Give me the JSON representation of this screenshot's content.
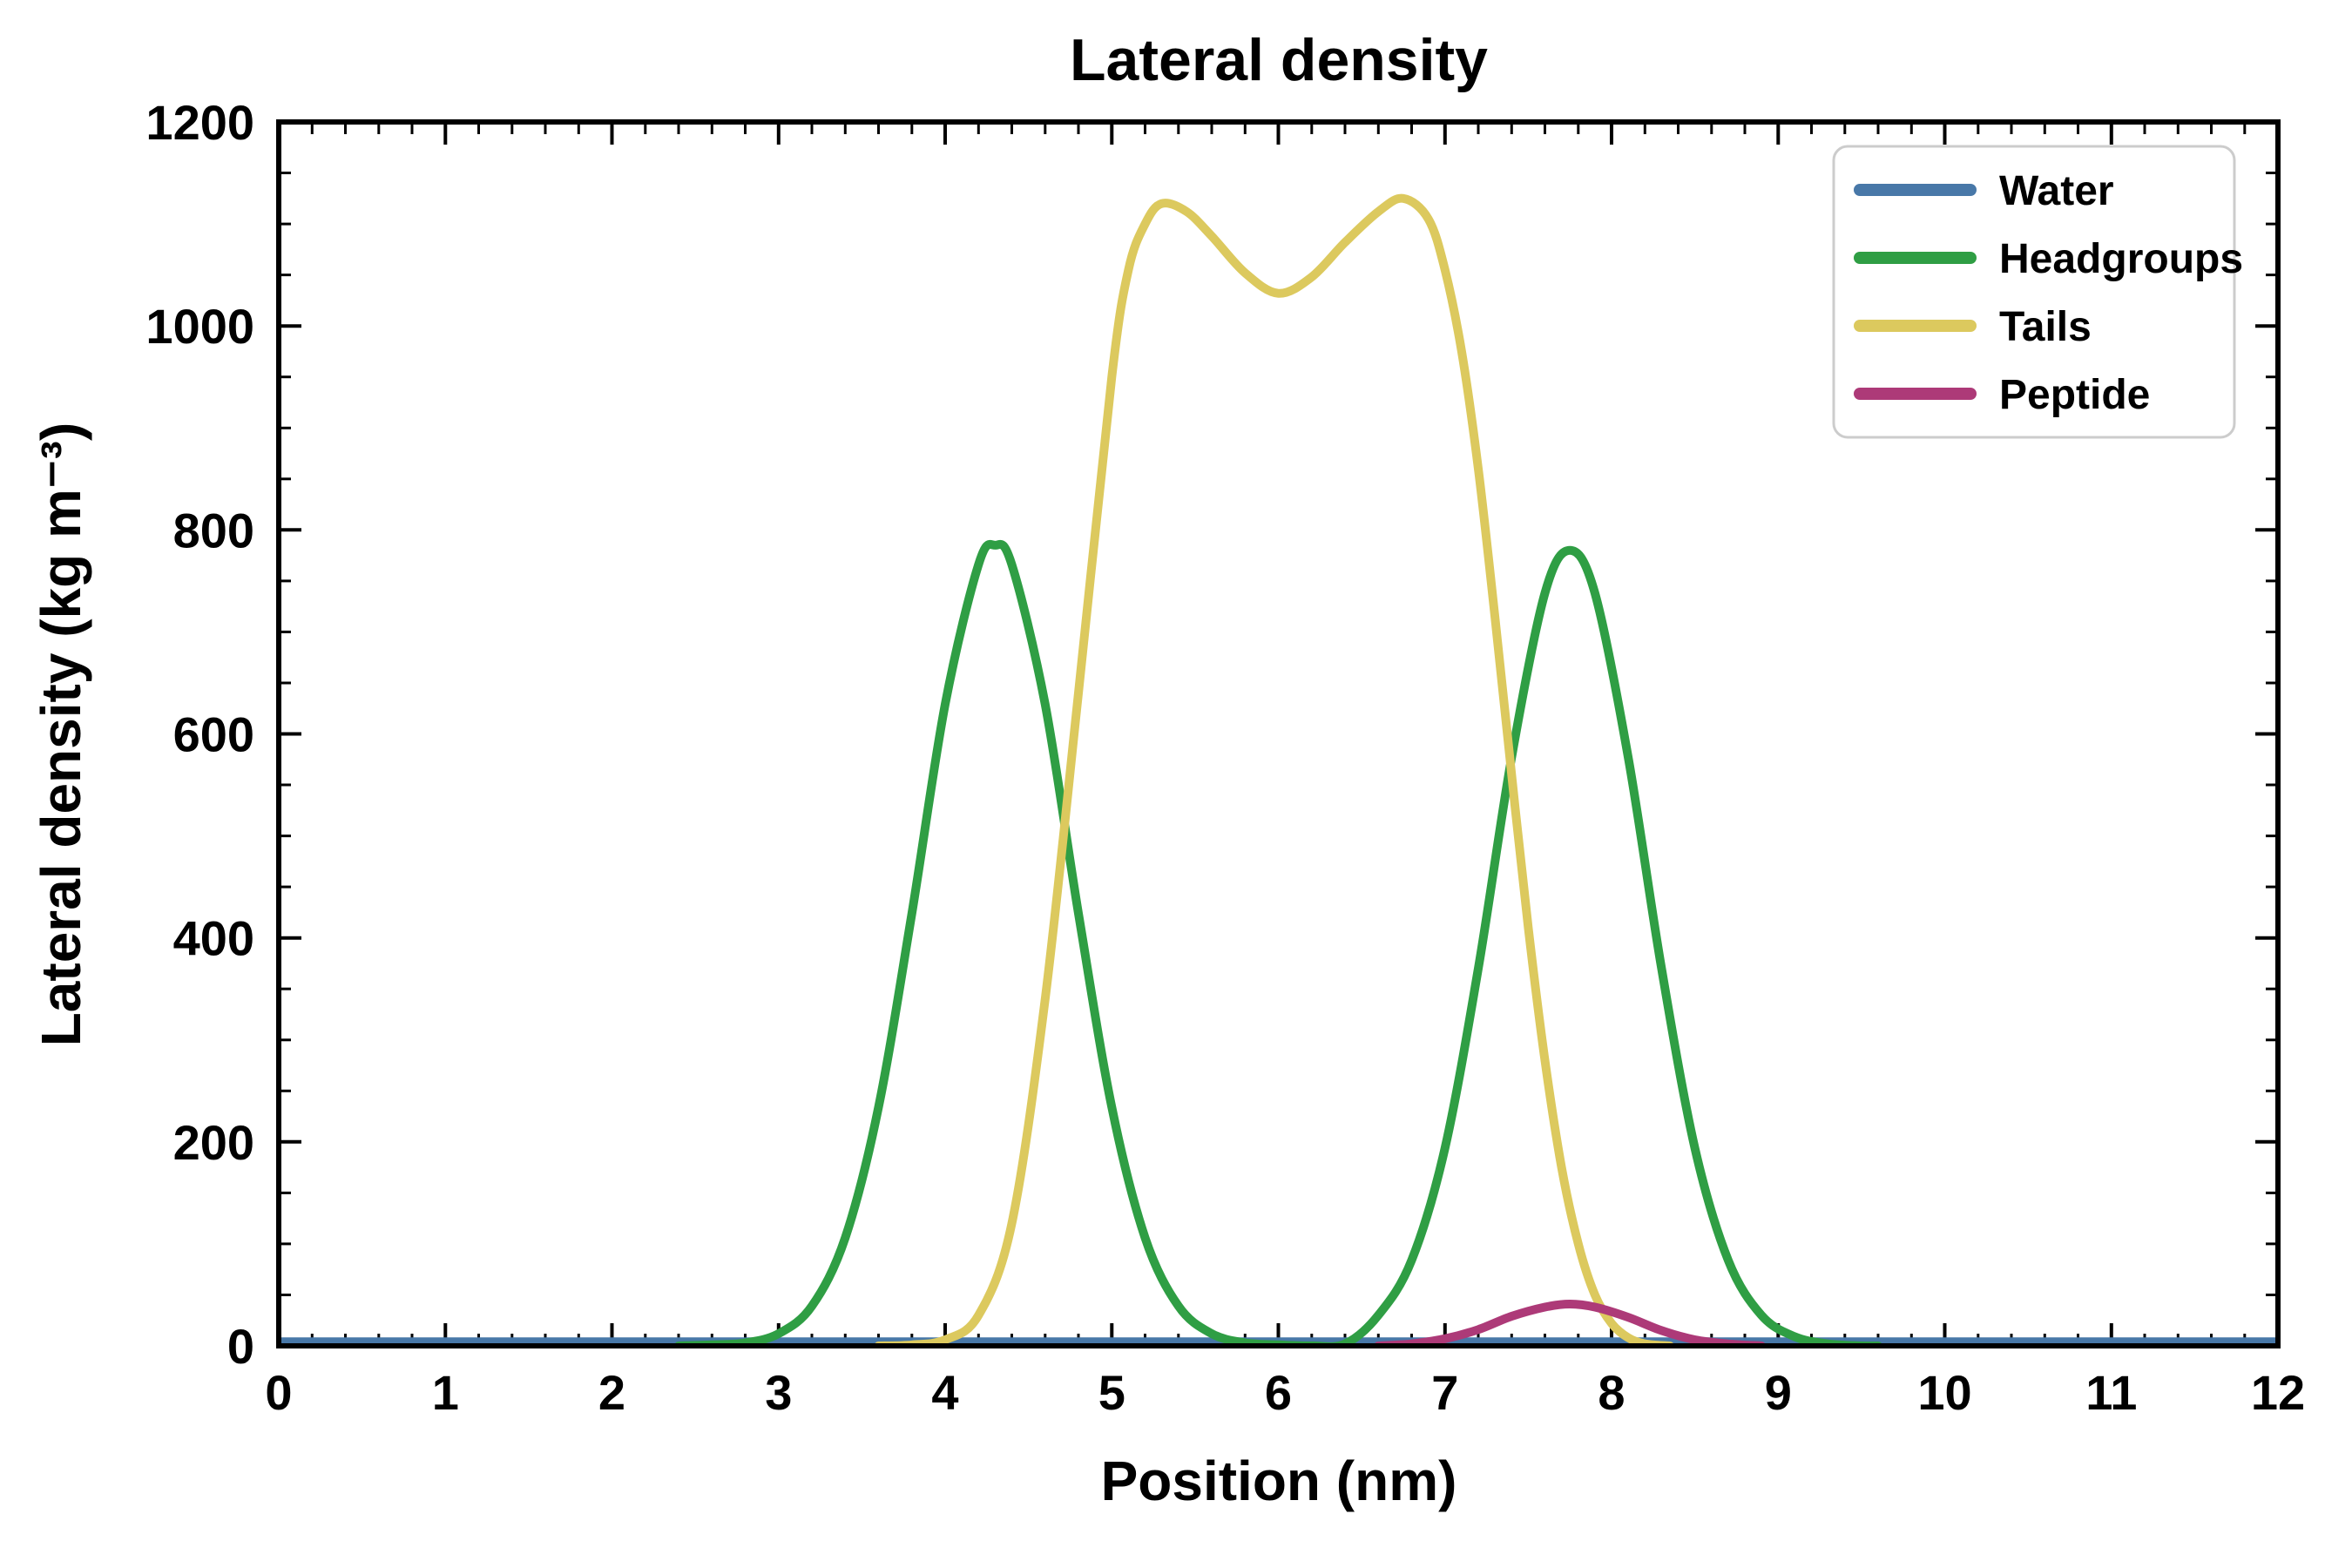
{
  "chart_data": {
    "type": "line",
    "title": "Lateral density",
    "xlabel": "Position (nm)",
    "ylabel": "Lateral density (kg m⁻³)",
    "xlim": [
      0,
      12
    ],
    "ylim": [
      0,
      1200
    ],
    "x_major_ticks": [
      0,
      1,
      2,
      3,
      4,
      5,
      6,
      7,
      8,
      9,
      10,
      11,
      12
    ],
    "y_major_ticks": [
      0,
      200,
      400,
      600,
      800,
      1000,
      1200
    ],
    "x_minor_step": 0.2,
    "y_minor_step": 50,
    "grid": false,
    "legend_position": "upper right",
    "series": [
      {
        "name": "Water",
        "color": "#4878a8",
        "points": [
          [
            0,
            4
          ],
          [
            12,
            4
          ]
        ]
      },
      {
        "name": "Headgroups",
        "color": "#2f9e44",
        "points": [
          [
            2.4,
            0
          ],
          [
            2.6,
            1
          ],
          [
            2.8,
            3
          ],
          [
            3.0,
            12
          ],
          [
            3.2,
            39
          ],
          [
            3.4,
            106
          ],
          [
            3.6,
            234
          ],
          [
            3.8,
            424
          ],
          [
            4.0,
            629
          ],
          [
            4.2,
            766
          ],
          [
            4.3,
            785
          ],
          [
            4.4,
            766
          ],
          [
            4.6,
            629
          ],
          [
            4.8,
            424
          ],
          [
            5.0,
            234
          ],
          [
            5.2,
            106
          ],
          [
            5.4,
            39
          ],
          [
            5.6,
            12
          ],
          [
            5.8,
            3
          ],
          [
            6.0,
            1
          ],
          [
            6.2,
            0
          ],
          [
            6.4,
            2
          ],
          [
            6.6,
            30
          ],
          [
            6.8,
            84
          ],
          [
            7.0,
            194
          ],
          [
            7.2,
            370
          ],
          [
            7.4,
            577
          ],
          [
            7.6,
            738
          ],
          [
            7.75,
            780
          ],
          [
            7.9,
            738
          ],
          [
            8.1,
            577
          ],
          [
            8.3,
            370
          ],
          [
            8.5,
            194
          ],
          [
            8.7,
            84
          ],
          [
            8.9,
            30
          ],
          [
            9.1,
            9
          ],
          [
            9.3,
            2
          ],
          [
            9.5,
            0
          ],
          [
            9.6,
            0
          ]
        ]
      },
      {
        "name": "Tails",
        "color": "#dcc95e",
        "points": [
          [
            3.6,
            0
          ],
          [
            3.8,
            1
          ],
          [
            4.0,
            6
          ],
          [
            4.2,
            30
          ],
          [
            4.4,
            120
          ],
          [
            4.6,
            340
          ],
          [
            4.8,
            640
          ],
          [
            5.0,
            950
          ],
          [
            5.1,
            1055
          ],
          [
            5.2,
            1100
          ],
          [
            5.3,
            1120
          ],
          [
            5.45,
            1112
          ],
          [
            5.6,
            1088
          ],
          [
            5.8,
            1052
          ],
          [
            6.0,
            1032
          ],
          [
            6.2,
            1048
          ],
          [
            6.4,
            1082
          ],
          [
            6.6,
            1112
          ],
          [
            6.75,
            1125
          ],
          [
            6.9,
            1105
          ],
          [
            7.0,
            1055
          ],
          [
            7.1,
            975
          ],
          [
            7.2,
            860
          ],
          [
            7.3,
            715
          ],
          [
            7.4,
            560
          ],
          [
            7.5,
            410
          ],
          [
            7.6,
            280
          ],
          [
            7.7,
            175
          ],
          [
            7.8,
            100
          ],
          [
            7.9,
            50
          ],
          [
            8.0,
            22
          ],
          [
            8.1,
            8
          ],
          [
            8.2,
            2
          ],
          [
            8.35,
            0
          ]
        ]
      },
      {
        "name": "Peptide",
        "color": "#ad3a78",
        "points": [
          [
            6.6,
            0
          ],
          [
            6.8,
            2
          ],
          [
            7.0,
            7
          ],
          [
            7.2,
            16
          ],
          [
            7.4,
            29
          ],
          [
            7.6,
            38
          ],
          [
            7.75,
            41
          ],
          [
            7.9,
            38
          ],
          [
            8.1,
            28
          ],
          [
            8.3,
            15
          ],
          [
            8.5,
            6
          ],
          [
            8.7,
            2
          ],
          [
            8.9,
            0
          ]
        ]
      }
    ]
  }
}
